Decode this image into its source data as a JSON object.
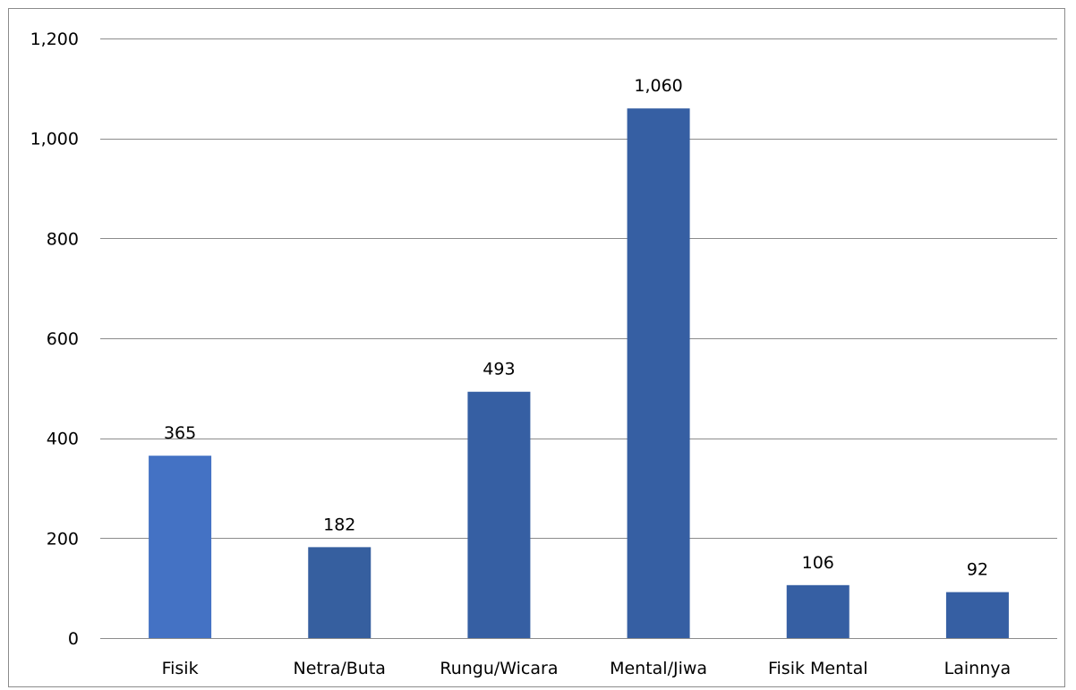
{
  "chart_data": {
    "type": "bar",
    "categories": [
      "Fisik",
      "Netra/Buta",
      "Rungu/Wicara",
      "Mental/Jiwa",
      "Fisik Mental",
      "Lainnya"
    ],
    "values": [
      365,
      182,
      493,
      1060,
      106,
      92
    ],
    "value_labels": [
      "365",
      "182",
      "493",
      "1,060",
      "106",
      "92"
    ],
    "bar_colors": [
      "#4472c4",
      "#365f9f",
      "#365fa3",
      "#365fa3",
      "#365fa3",
      "#365fa3"
    ],
    "title": "",
    "xlabel": "",
    "ylabel": "",
    "ylim": [
      0,
      1200
    ],
    "y_ticks": [
      0,
      200,
      400,
      600,
      800,
      1000,
      1200
    ],
    "y_tick_labels": [
      "0",
      "200",
      "400",
      "600",
      "800",
      "1,000",
      "1,200"
    ],
    "grid": true,
    "legend": "none",
    "gridline_color": "#8c8c8c"
  }
}
